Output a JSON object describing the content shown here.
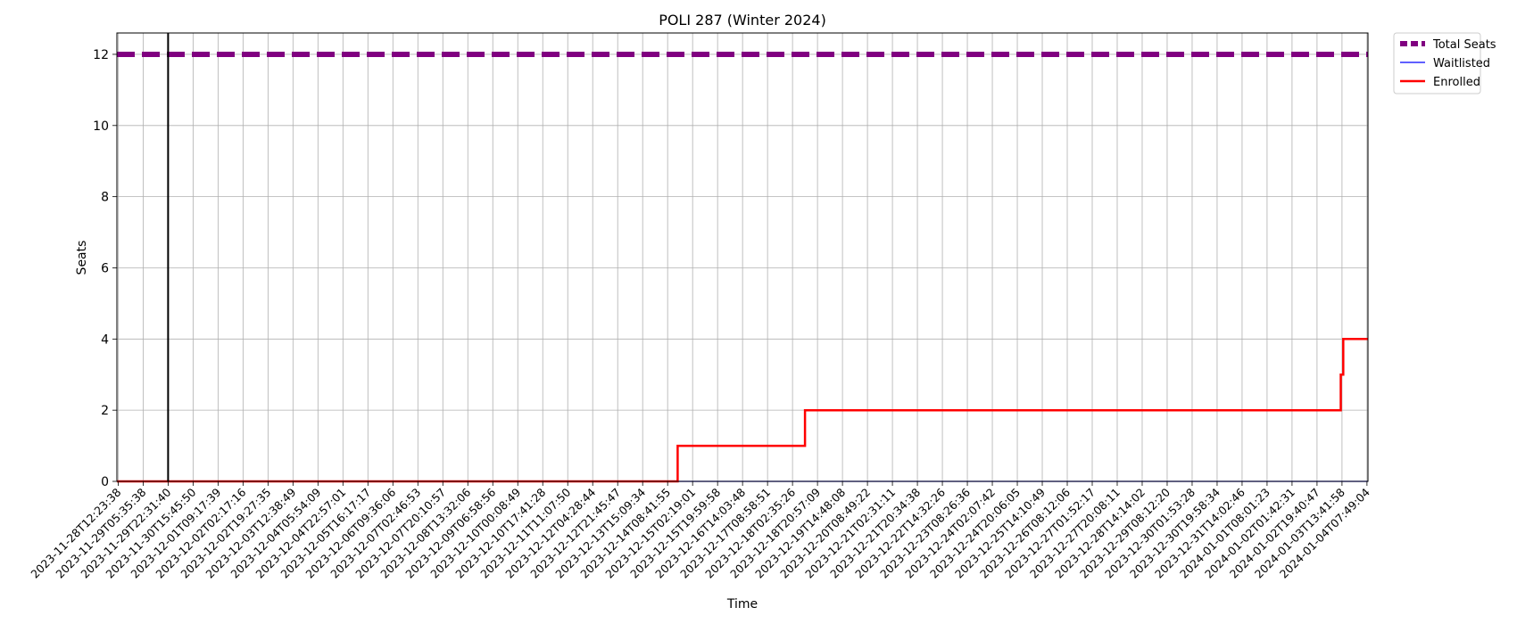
{
  "chart_data": {
    "type": "line",
    "title": "POLI 287 (Winter 2024)",
    "xlabel": "Time",
    "ylabel": "Seats",
    "ylim": [
      0,
      12.6
    ],
    "yticks": [
      "0",
      "2",
      "4",
      "6",
      "8",
      "10",
      "12"
    ],
    "grid": true,
    "legend_position": "outside-top-right",
    "x_tick_labels": [
      "2023-11-28T12:23:38",
      "2023-11-29T05:35:38",
      "2023-11-29T22:31:40",
      "2023-11-30T15:45:50",
      "2023-12-01T09:17:39",
      "2023-12-02T02:17:16",
      "2023-12-02T19:27:35",
      "2023-12-03T12:38:49",
      "2023-12-04T05:54:09",
      "2023-12-04T22:57:01",
      "2023-12-05T16:17:17",
      "2023-12-06T09:36:06",
      "2023-12-07T02:46:53",
      "2023-12-07T20:10:57",
      "2023-12-08T13:32:06",
      "2023-12-09T06:58:56",
      "2023-12-10T00:08:49",
      "2023-12-10T17:41:28",
      "2023-12-11T11:07:50",
      "2023-12-12T04:28:44",
      "2023-12-12T21:45:47",
      "2023-12-13T15:09:34",
      "2023-12-14T08:41:55",
      "2023-12-15T02:19:01",
      "2023-12-15T19:59:58",
      "2023-12-16T14:03:48",
      "2023-12-17T08:58:51",
      "2023-12-18T02:35:26",
      "2023-12-18T20:57:09",
      "2023-12-19T14:48:08",
      "2023-12-20T08:49:22",
      "2023-12-21T02:31:11",
      "2023-12-21T20:34:38",
      "2023-12-22T14:32:26",
      "2023-12-23T08:26:36",
      "2023-12-24T02:07:42",
      "2023-12-24T20:06:05",
      "2023-12-25T14:10:49",
      "2023-12-26T08:12:06",
      "2023-12-27T01:52:17",
      "2023-12-27T20:08:11",
      "2023-12-28T14:14:02",
      "2023-12-29T08:12:20",
      "2023-12-30T01:53:28",
      "2023-12-30T19:58:34",
      "2023-12-31T14:02:46",
      "2024-01-01T08:01:23",
      "2024-01-02T01:42:31",
      "2024-01-02T19:40:47",
      "2024-01-03T13:41:58",
      "2024-01-04T07:49:04"
    ],
    "x_range_ticks": [
      -0.05,
      50.04
    ],
    "vline_at_tick": 2,
    "series": [
      {
        "name": "Total Seats",
        "color": "#800080",
        "style": "dashed",
        "points": [
          [
            -0.05,
            12
          ],
          [
            50.04,
            12
          ]
        ]
      },
      {
        "name": "Waitlisted",
        "color": "#0000ff",
        "style": "solid",
        "points": [
          [
            -0.05,
            0
          ],
          [
            50.04,
            0
          ]
        ]
      },
      {
        "name": "Enrolled",
        "color": "#ff0000",
        "style": "solid",
        "points": [
          [
            -0.05,
            0
          ],
          [
            22.4,
            0
          ],
          [
            22.4,
            1
          ],
          [
            27.5,
            1
          ],
          [
            27.5,
            2
          ],
          [
            48.95,
            2
          ],
          [
            48.95,
            3
          ],
          [
            49.05,
            3
          ],
          [
            49.05,
            4
          ],
          [
            50.04,
            4
          ]
        ]
      }
    ]
  }
}
